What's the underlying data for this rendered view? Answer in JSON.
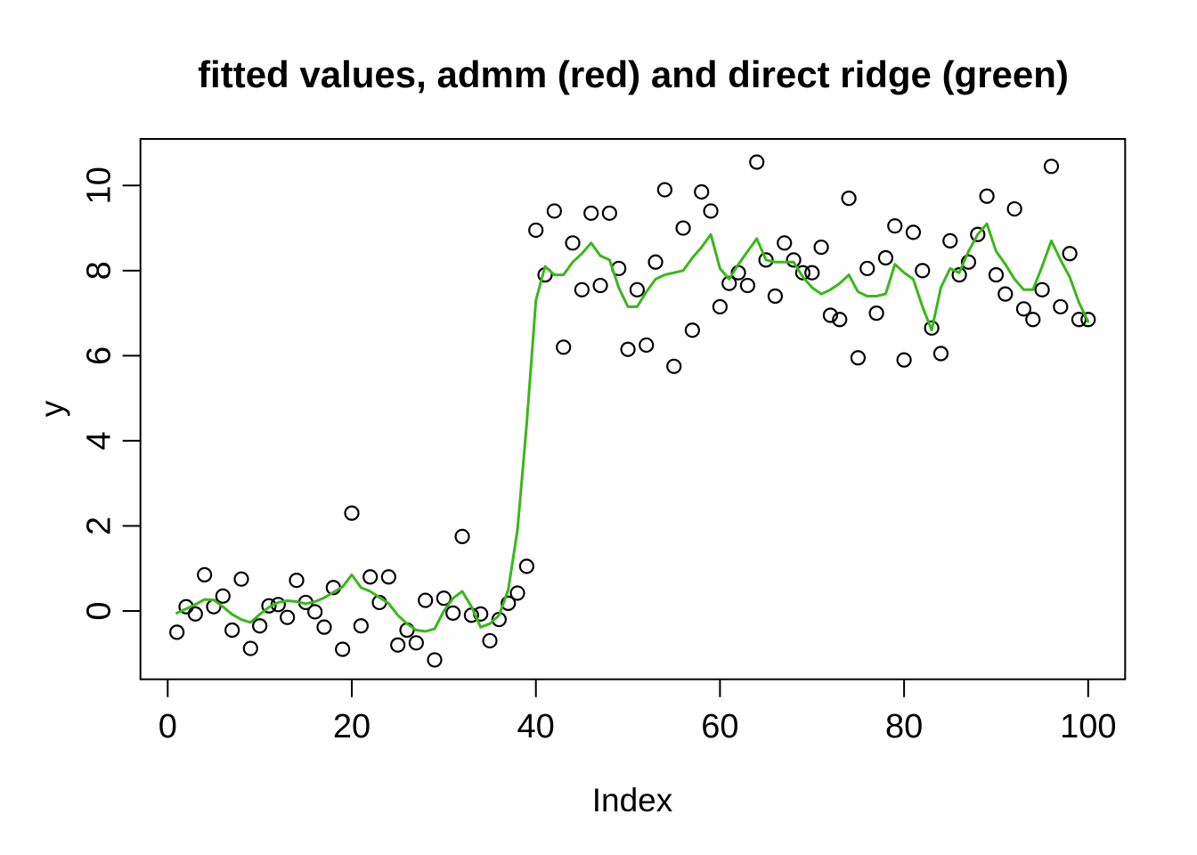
{
  "title": "fitted values, admm (red) and direct ridge (green)",
  "xlabel": "Index",
  "ylabel": "y",
  "colors": {
    "background": "#ffffff",
    "axis": "#000000",
    "points": "#000000",
    "ridge_line_green": "#38b818"
  },
  "chart_data": {
    "type": "scatter",
    "title": "fitted values, admm (red) and direct ridge (green)",
    "xlabel": "Index",
    "ylabel": "y",
    "x_ticks": [
      0,
      20,
      40,
      60,
      80,
      100
    ],
    "y_ticks": [
      0,
      2,
      4,
      6,
      8,
      10
    ],
    "xlim": [
      -3,
      104
    ],
    "ylim": [
      -1.6,
      11.1
    ],
    "grid": "off",
    "legend": "none (series identified in title)",
    "x_rule": "index, integers 1 to 100 for both series",
    "series": [
      {
        "name": "y observations",
        "style": "open-circle points",
        "color": "#000000",
        "values": [
          -0.5,
          0.1,
          -0.07,
          0.85,
          0.1,
          0.35,
          -0.45,
          0.75,
          -0.88,
          -0.35,
          0.12,
          0.15,
          -0.15,
          0.72,
          0.2,
          -0.02,
          -0.38,
          0.55,
          -0.9,
          2.3,
          -0.35,
          0.8,
          0.2,
          0.8,
          -0.8,
          -0.45,
          -0.75,
          0.25,
          -1.15,
          0.3,
          -0.05,
          1.75,
          -0.1,
          -0.07,
          -0.7,
          -0.2,
          0.18,
          0.42,
          1.05,
          8.95,
          7.9,
          9.4,
          6.2,
          8.65,
          7.55,
          9.35,
          7.65,
          9.35,
          8.05,
          6.15,
          7.55,
          6.25,
          8.2,
          9.9,
          5.75,
          9.0,
          6.6,
          9.85,
          9.4,
          7.15,
          7.7,
          7.95,
          7.65,
          10.55,
          8.25,
          7.4,
          8.65,
          8.25,
          7.95,
          7.95,
          8.55,
          6.95,
          6.85,
          9.7,
          5.95,
          8.05,
          7.0,
          8.3,
          9.05,
          5.9,
          8.9,
          8.0,
          6.65,
          6.05,
          8.7,
          7.9,
          8.2,
          8.85,
          9.75,
          7.9,
          7.45,
          9.45,
          7.1,
          6.85,
          7.55,
          10.45,
          7.15,
          8.4,
          6.85,
          6.85
        ]
      },
      {
        "name": "direct ridge fitted values (green line)",
        "style": "line",
        "color": "#38b818",
        "values": [
          -0.05,
          0.05,
          0.15,
          0.27,
          0.26,
          0.1,
          -0.08,
          -0.2,
          -0.27,
          -0.08,
          0.09,
          0.2,
          0.24,
          0.22,
          0.17,
          0.22,
          0.31,
          0.44,
          0.57,
          0.85,
          0.55,
          0.46,
          0.32,
          0.18,
          -0.1,
          -0.3,
          -0.45,
          -0.48,
          -0.42,
          0.0,
          0.3,
          0.46,
          0.1,
          -0.38,
          -0.3,
          -0.1,
          0.5,
          1.9,
          4.4,
          7.3,
          8.1,
          7.9,
          7.9,
          8.2,
          8.4,
          8.65,
          8.35,
          8.25,
          7.6,
          7.15,
          7.15,
          7.5,
          7.8,
          7.9,
          7.95,
          8.0,
          8.3,
          8.55,
          8.85,
          8.05,
          7.8,
          8.15,
          8.45,
          8.75,
          8.25,
          8.2,
          8.2,
          8.2,
          7.85,
          7.6,
          7.45,
          7.55,
          7.7,
          7.9,
          7.5,
          7.4,
          7.4,
          7.45,
          8.15,
          7.95,
          7.8,
          7.15,
          6.6,
          7.6,
          8.05,
          7.95,
          8.45,
          8.85,
          9.1,
          8.45,
          8.15,
          7.8,
          7.55,
          7.55,
          8.1,
          8.7,
          8.25,
          7.85,
          7.25,
          6.8
        ]
      }
    ]
  }
}
